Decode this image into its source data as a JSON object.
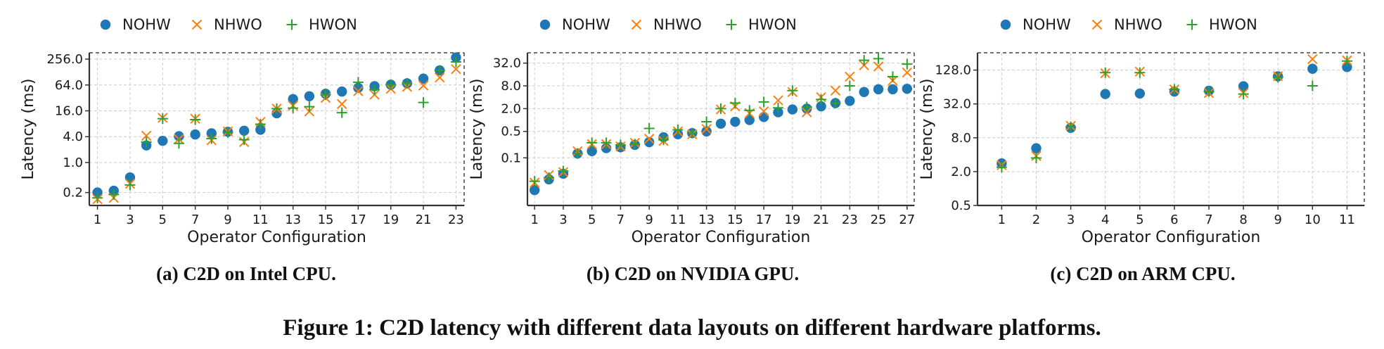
{
  "figure": {
    "caption": "Figure 1: C2D latency with different data layouts on different hardware platforms."
  },
  "legend": [
    "NOHW",
    "NHWO",
    "HWON"
  ],
  "colors": {
    "NOHW": "#1f77b4",
    "NHWO": "#ff7f0e",
    "HWON": "#2ca02c",
    "grid": "#cccccc",
    "frame": "#444444"
  },
  "chart_data": [
    {
      "type": "scatter",
      "caption": "(a) C2D on Intel CPU.",
      "xlabel": "Operator Configuration",
      "ylabel": "Latency (ms)",
      "yscale": "log2",
      "ylim": [
        0.1,
        360
      ],
      "xlim": [
        0.5,
        23.5
      ],
      "xticks": [
        1,
        3,
        5,
        7,
        9,
        11,
        13,
        15,
        17,
        19,
        21,
        23
      ],
      "yticks": [
        0.2,
        1.0,
        4.0,
        16.0,
        64.0,
        256.0
      ],
      "ytick_labels": [
        "0.2",
        "1.0",
        "4.0",
        "16.0",
        "64.0",
        "256.0"
      ],
      "grid": true,
      "legend_position": "top",
      "x": [
        1,
        2,
        3,
        4,
        5,
        6,
        7,
        8,
        9,
        10,
        11,
        12,
        13,
        14,
        15,
        16,
        17,
        18,
        19,
        20,
        21,
        22,
        23
      ],
      "series": [
        {
          "name": "NOHW",
          "marker": "circle",
          "values": [
            0.2,
            0.22,
            0.45,
            2.5,
            3.2,
            4.1,
            4.5,
            4.8,
            5.2,
            5.5,
            5.8,
            14,
            30,
            35,
            40,
            45,
            55,
            60,
            65,
            70,
            90,
            140,
            280
          ]
        },
        {
          "name": "NHWO",
          "marker": "x",
          "values": [
            0.14,
            0.15,
            0.32,
            4.2,
            11,
            3.5,
            10.5,
            3.3,
            5.3,
            3.0,
            8.8,
            18,
            21,
            15.5,
            32,
            23,
            46,
            38,
            52,
            58,
            62,
            95,
            150
          ]
        },
        {
          "name": "HWON",
          "marker": "plus",
          "values": [
            0.15,
            0.18,
            0.3,
            3.0,
            10.5,
            2.8,
            10.0,
            3.6,
            5.0,
            3.4,
            7.8,
            18,
            18.5,
            20,
            38,
            14.5,
            74,
            50,
            65,
            70,
            25,
            140,
            220
          ]
        }
      ]
    },
    {
      "type": "scatter",
      "caption": "(b) C2D on NVIDIA GPU.",
      "xlabel": "Operator Configuration",
      "ylabel": "Latency (ms)",
      "yscale": "log2",
      "ylim": [
        0.0055,
        60
      ],
      "xlim": [
        0.5,
        27.5
      ],
      "xticks": [
        1,
        3,
        5,
        7,
        9,
        11,
        13,
        15,
        17,
        19,
        21,
        23,
        25,
        27
      ],
      "yticks": [
        0.1,
        0.5,
        2.0,
        8.0,
        32.0
      ],
      "ytick_labels": [
        "0.1",
        "0.5",
        "2.0",
        "8.0",
        "32.0"
      ],
      "grid": true,
      "legend_position": "top",
      "x": [
        1,
        2,
        3,
        4,
        5,
        6,
        7,
        8,
        9,
        10,
        11,
        12,
        13,
        14,
        15,
        16,
        17,
        18,
        19,
        20,
        21,
        22,
        23,
        24,
        25,
        26,
        27
      ],
      "series": [
        {
          "name": "NOHW",
          "marker": "circle",
          "values": [
            0.014,
            0.027,
            0.038,
            0.13,
            0.15,
            0.18,
            0.19,
            0.22,
            0.26,
            0.35,
            0.42,
            0.45,
            0.5,
            0.8,
            0.9,
            1.0,
            1.2,
            1.6,
            1.9,
            2.0,
            2.3,
            2.8,
            3.2,
            5.5,
            6.5,
            6.5,
            6.7
          ]
        },
        {
          "name": "NHWO",
          "marker": "x",
          "values": [
            0.022,
            0.035,
            0.042,
            0.15,
            0.23,
            0.23,
            0.2,
            0.25,
            0.32,
            0.28,
            0.5,
            0.42,
            0.58,
            1.9,
            2.3,
            1.5,
            1.7,
            3.3,
            5.5,
            1.6,
            4.0,
            6.0,
            14,
            28,
            26,
            11,
            18
          ]
        },
        {
          "name": "HWON",
          "marker": "plus",
          "values": [
            0.024,
            0.03,
            0.045,
            0.13,
            0.25,
            0.25,
            0.22,
            0.23,
            0.6,
            0.3,
            0.55,
            0.45,
            0.9,
            2.0,
            2.8,
            1.8,
            3.0,
            2.1,
            6.0,
            2.2,
            3.5,
            2.8,
            8.0,
            38,
            42,
            14,
            30
          ]
        }
      ]
    },
    {
      "type": "scatter",
      "caption": "(c) C2D on ARM CPU.",
      "xlabel": "Operator Configuration",
      "ylabel": "Latency (ms)",
      "yscale": "log2",
      "ylim": [
        0.5,
        260
      ],
      "xlim": [
        0.3,
        11.5
      ],
      "xticks": [
        1,
        2,
        3,
        4,
        5,
        6,
        7,
        8,
        9,
        10,
        11
      ],
      "yticks": [
        0.5,
        2.0,
        8.0,
        32.0,
        128.0
      ],
      "ytick_labels": [
        "0.5",
        "2.0",
        "8.0",
        "32.0",
        "128.0"
      ],
      "grid": true,
      "legend_position": "top",
      "x": [
        1,
        2,
        3,
        4,
        5,
        6,
        7,
        8,
        9,
        10,
        11
      ],
      "series": [
        {
          "name": "NOHW",
          "marker": "circle",
          "values": [
            2.8,
            5.2,
            12,
            48,
            49,
            53,
            55,
            66,
            99,
            135,
            145
          ]
        },
        {
          "name": "NHWO",
          "marker": "x",
          "values": [
            2.6,
            3.8,
            13,
            112,
            120,
            58,
            50,
            50,
            100,
            200,
            190
          ]
        },
        {
          "name": "HWON",
          "marker": "plus",
          "values": [
            2.4,
            3.5,
            12.5,
            115,
            115,
            58,
            53,
            48,
            95,
            67,
            185
          ]
        }
      ]
    }
  ]
}
